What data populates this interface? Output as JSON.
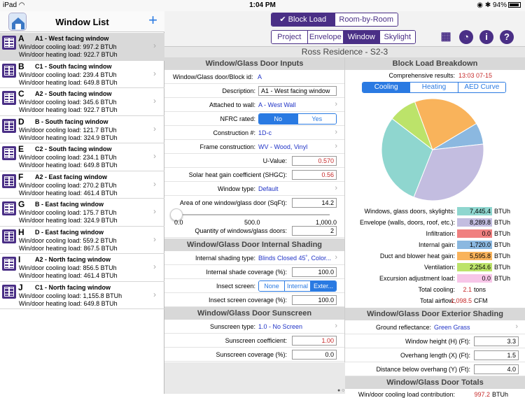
{
  "status_bar": {
    "device": "iPad",
    "time": "1:04 PM",
    "battery": "94%"
  },
  "sidebar": {
    "title": "Window List",
    "add_label": "+",
    "items": [
      {
        "letter": "A",
        "name": "A1 - West facing window",
        "cooling": "Win/door cooling load: 997.2 BTUh",
        "heating": "Win/door heating load: 922.7 BTUh"
      },
      {
        "letter": "B",
        "name": "C1 - South facing window",
        "cooling": "Win/door cooling load: 239.4 BTUh",
        "heating": "Win/door heating load: 649.8 BTUh"
      },
      {
        "letter": "C",
        "name": "A2 - South facing window",
        "cooling": "Win/door cooling load: 345.6 BTUh",
        "heating": "Win/door heating load: 922.7 BTUh"
      },
      {
        "letter": "D",
        "name": "B - South facing window",
        "cooling": "Win/door cooling load: 121.7 BTUh",
        "heating": "Win/door heating load: 324.9 BTUh"
      },
      {
        "letter": "E",
        "name": "C2 - South facing window",
        "cooling": "Win/door cooling load: 234.1 BTUh",
        "heating": "Win/door heating load: 649.8 BTUh"
      },
      {
        "letter": "F",
        "name": "A2 - East facing window",
        "cooling": "Win/door cooling load: 270.2 BTUh",
        "heating": "Win/door heating load: 461.4 BTUh"
      },
      {
        "letter": "G",
        "name": "B - East facing window",
        "cooling": "Win/door cooling load: 175.7 BTUh",
        "heating": "Win/door heating load: 324.9 BTUh"
      },
      {
        "letter": "H",
        "name": "D - East facing window",
        "cooling": "Win/door cooling load: 559.2 BTUh",
        "heating": "Win/door heating load: 867.5 BTUh"
      },
      {
        "letter": "I",
        "name": "A2 - North facing window",
        "cooling": "Win/door cooling load: 856.5 BTUh",
        "heating": "Win/door heating load: 461.4 BTUh"
      },
      {
        "letter": "J",
        "name": "C1 - North facing window",
        "cooling": "Win/door cooling load: 1,155.8 BTUh",
        "heating": "Win/door heating load: 649.8 BTUh"
      }
    ]
  },
  "toolbar": {
    "mode_tabs": [
      "Block Load",
      "Room-by-Room"
    ],
    "section_tabs": [
      "Project",
      "Envelope",
      "Window",
      "Skylight"
    ],
    "icons": [
      "calculator-icon",
      "pie-chart-icon",
      "info-icon",
      "help-icon"
    ]
  },
  "project_title": "Ross Residence - S2-3",
  "inputs": {
    "header": "Window/Glass Door Inputs",
    "block_id_label": "Window/Glass door/Block id:",
    "block_id_value": "A",
    "description_label": "Description:",
    "description_value": "A1 - West facing window",
    "attached_label": "Attached to wall:",
    "attached_value": "A - West Wall",
    "nfrc_label": "NFRC rated:",
    "nfrc_options": [
      "No",
      "Yes"
    ],
    "construction_label": "Construction #:",
    "construction_value": "1D-c",
    "frame_label": "Frame construction:",
    "frame_value": "WV - Wood, Vinyl",
    "uvalue_label": "U-Value:",
    "uvalue_value": "0.570",
    "shgc_label": "Solar heat gain coefficient (SHGC):",
    "shgc_value": "0.56",
    "wtype_label": "Window type:",
    "wtype_value": "Default",
    "area_label": "Area of one window/glass door (SqFt):",
    "area_value": "14.2",
    "area_slider_fraction": 0.0142,
    "slider_ticks": [
      "0.0",
      "500.0",
      "1,000.0"
    ],
    "qty_label": "Quantity of windows/glass doors:",
    "qty_value": "2"
  },
  "shading": {
    "header": "Window/Glass Door Internal Shading",
    "type_label": "Internal shading type:",
    "type_value": "Blinds Closed 45˚, Color...",
    "coverage_label": "Internal shade coverage (%):",
    "coverage_value": "100.0",
    "insect_label": "Insect screen:",
    "insect_options": [
      "None",
      "Internal",
      "Exter..."
    ],
    "insect_cov_label": "Insect screen coverage (%):",
    "insect_cov_value": "100.0"
  },
  "sunscreen": {
    "header": "Window/Glass Door Sunscreen",
    "type_label": "Sunscreen type:",
    "type_value": "1.0 - No Screen",
    "coef_label": "Sunscreen coefficient:",
    "coef_value": "1.00",
    "cov_label": "Sunscreen coverage (%):",
    "cov_value": "0.0"
  },
  "breakdown": {
    "header": "Block Load Breakdown",
    "results_label": "Comprehensive results:",
    "results_value": "13:03 07-15",
    "tabs": [
      "Cooling",
      "Heating",
      "AED Curve"
    ],
    "unit": "BTUh",
    "items": [
      {
        "label": "Windows, glass doors, skylights:",
        "value": "7,445.4",
        "color": "#8fd6cf"
      },
      {
        "label": "Envelope (walls, doors, roof, etc.):",
        "value": "8,289.8",
        "color": "#c3bde0"
      },
      {
        "label": "Infiltration:",
        "value": "0.0",
        "color": "#f08080"
      },
      {
        "label": "Internal gain:",
        "value": "1,720.0",
        "color": "#8bb8e0"
      },
      {
        "label": "Duct and blower heat gain:",
        "value": "5,595.8",
        "color": "#f9b35b"
      },
      {
        "label": "Ventilation:",
        "value": "2,254.6",
        "color": "#bce36a"
      },
      {
        "label": "Excursion adjustment load:",
        "value": "0.0",
        "color": "#f7c6e8"
      }
    ],
    "total_cooling_label": "Total cooling:",
    "total_cooling_value": "2.1",
    "total_cooling_unit": "tons",
    "total_airflow_label": "Total airflow:",
    "total_airflow_value": "1,098.5",
    "total_airflow_unit": "CFM"
  },
  "exterior": {
    "header": "Window/Glass Door Exterior Shading",
    "ground_label": "Ground reflectance:",
    "ground_value": "Green Grass",
    "height_label": "Window height (H) (Ft):",
    "height_value": "3.3",
    "overhang_label": "Overhang length (X) (Ft):",
    "overhang_value": "1.5",
    "distance_label": "Distance below overhang (Y) (Ft):",
    "distance_value": "4.0"
  },
  "totals": {
    "header": "Window/Glass Door Totals",
    "cooling_label": "Win/door cooling load contribution:",
    "cooling_value": "997.2",
    "cooling_unit": "BTUh"
  }
}
